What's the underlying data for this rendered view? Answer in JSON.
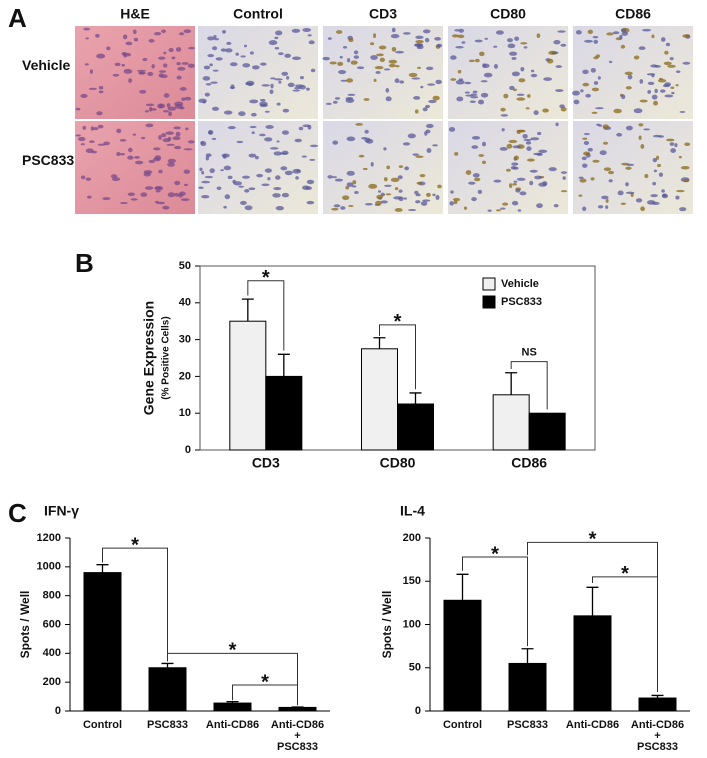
{
  "panel_a": {
    "label": "A",
    "columns": [
      "H&E",
      "Control",
      "CD3",
      "CD80",
      "CD86"
    ],
    "rows": [
      "Vehicle",
      "PSC833"
    ]
  },
  "chart_data": [
    {
      "type": "bar",
      "panel_label": "B",
      "ylabel": "Gene Expression",
      "ylabel_sub": "(% Positive Cells)",
      "categories": [
        "CD3",
        "CD80",
        "CD86"
      ],
      "series": [
        {
          "name": "Vehicle",
          "color": "#f0f0f0",
          "values": [
            35,
            27.5,
            15
          ],
          "errors": [
            6,
            3,
            6
          ]
        },
        {
          "name": "PSC833",
          "color": "#000000",
          "values": [
            20,
            12.5,
            10
          ],
          "errors": [
            6,
            3,
            null
          ]
        }
      ],
      "ylim": [
        0,
        50
      ],
      "yticks": [
        0,
        10,
        20,
        30,
        40,
        50
      ],
      "legend": "upper right",
      "frame": true,
      "annotations": [
        "*",
        "*",
        "NS"
      ]
    },
    {
      "type": "bar",
      "panel_label": "C",
      "title": "IFN-γ",
      "ylabel": "Spots / Well",
      "categories": [
        "Control",
        "PSC833",
        "Anti-CD86",
        "Anti-CD86\n+\nPSC833"
      ],
      "series": [
        {
          "color": "#000000",
          "values": [
            960,
            300,
            55,
            25
          ],
          "errors": [
            55,
            30,
            10,
            3
          ]
        }
      ],
      "ylim": [
        0,
        1200
      ],
      "yticks": [
        0,
        200,
        400,
        600,
        800,
        1000,
        1200
      ],
      "frame": false,
      "annotations": [
        "*",
        "*",
        "*"
      ]
    },
    {
      "type": "bar",
      "title": "IL-4",
      "ylabel": "Spots / Well",
      "categories": [
        "Control",
        "PSC833",
        "Anti-CD86",
        "Anti-CD86\n+\nPSC833"
      ],
      "series": [
        {
          "color": "#000000",
          "values": [
            128,
            55,
            110,
            15
          ],
          "errors": [
            30,
            17,
            33,
            3
          ]
        }
      ],
      "ylim": [
        0,
        200
      ],
      "yticks": [
        0,
        50,
        100,
        150,
        200
      ],
      "frame": false,
      "annotations": [
        "*",
        "*",
        "*"
      ]
    }
  ]
}
